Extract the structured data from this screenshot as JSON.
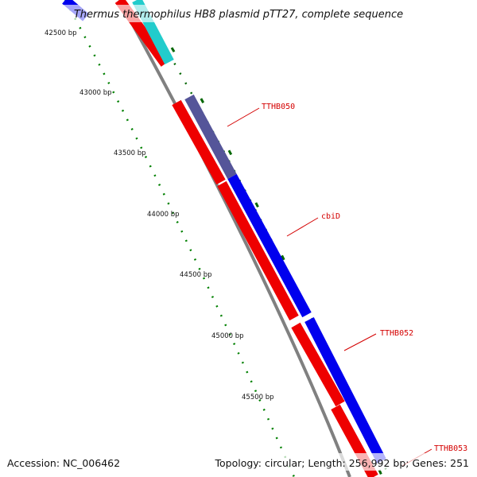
{
  "title": "Thermus thermophilus HB8 plasmid pTT27, complete sequence",
  "ticks": [
    "42500 bp",
    "43000 bp",
    "43500 bp",
    "44000 bp",
    "44500 bp",
    "45000 bp",
    "45500 bp"
  ],
  "gene_labels": [
    "TTHB050",
    "cbiD",
    "TTHB052",
    "TTHB053"
  ],
  "footer": {
    "accession": "Accession: NC_006462",
    "summary": "Topology: circular; Length: 256,992 bp; Genes: 251"
  },
  "colors": {
    "forward_cds": "#0000ee",
    "reverse_cds": "#ee0000",
    "cyan_feature": "#22cccc",
    "overlap": "#555599",
    "backbone": "#808080",
    "tick_marks": "#006600",
    "label": "#d40000"
  }
}
